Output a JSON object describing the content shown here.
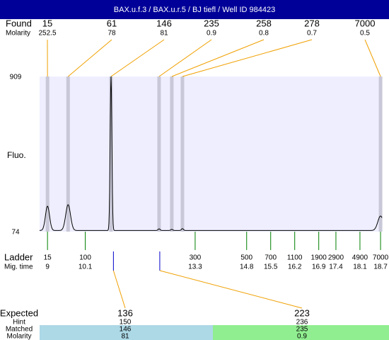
{
  "title": "BAX.u.f.3 / BAX.u.r.5 / BJ tiefl / Well ID 984423",
  "found": {
    "label": "Found",
    "molarity_label": "Molarity",
    "peaks": [
      {
        "size": 15,
        "molarity": 252.5,
        "time": 9.0,
        "height": 211,
        "width": 0.06
      },
      {
        "size": 61,
        "molarity": 78,
        "time": 9.6,
        "height": 219,
        "width": 0.07
      },
      {
        "size": 146,
        "molarity": 81,
        "time": 10.85,
        "height": 909,
        "width": 0.025
      },
      {
        "size": 235,
        "molarity": 0.9,
        "time": 12.25,
        "height": 89,
        "width": 0.03
      },
      {
        "size": 258,
        "molarity": 0.8,
        "time": 12.62,
        "height": 86,
        "width": 0.03
      },
      {
        "size": 278,
        "molarity": 0.7,
        "time": 12.93,
        "height": 90,
        "width": 0.03
      },
      {
        "size": 7000,
        "molarity": 0.5,
        "time": 18.7,
        "height": 158,
        "width": 0.08
      }
    ]
  },
  "plot": {
    "y_label": "Fluo.",
    "ylim": [
      74,
      909
    ],
    "yticks": [
      909,
      74
    ],
    "xlim": [
      8.77,
      18.74
    ],
    "baseline": 80
  },
  "ladder": {
    "label": "Ladder",
    "time_label": "Mig. time",
    "points": [
      {
        "size": 15,
        "time": 9
      },
      {
        "size": 100,
        "time": 10.1
      },
      {
        "size": 300,
        "time": 13.3
      },
      {
        "size": 500,
        "time": 14.8
      },
      {
        "size": 700,
        "time": 15.5
      },
      {
        "size": 1100,
        "time": 16.2
      },
      {
        "size": 1900,
        "time": 16.9
      },
      {
        "size": 2900,
        "time": 17.4
      },
      {
        "size": 4900,
        "time": 18.1
      },
      {
        "size": 7000,
        "time": 18.7
      }
    ]
  },
  "expected": {
    "label": "Expected",
    "hint_label": "Hint",
    "matched_label": "Matched",
    "molarity_label": "Molarity",
    "items": [
      {
        "size": 136,
        "hint": 150,
        "matched": 146,
        "molarity": 81,
        "time": 10.92
      },
      {
        "size": 223,
        "hint": 236,
        "matched": 235,
        "molarity": 0.9,
        "time": 12.27
      }
    ]
  }
}
